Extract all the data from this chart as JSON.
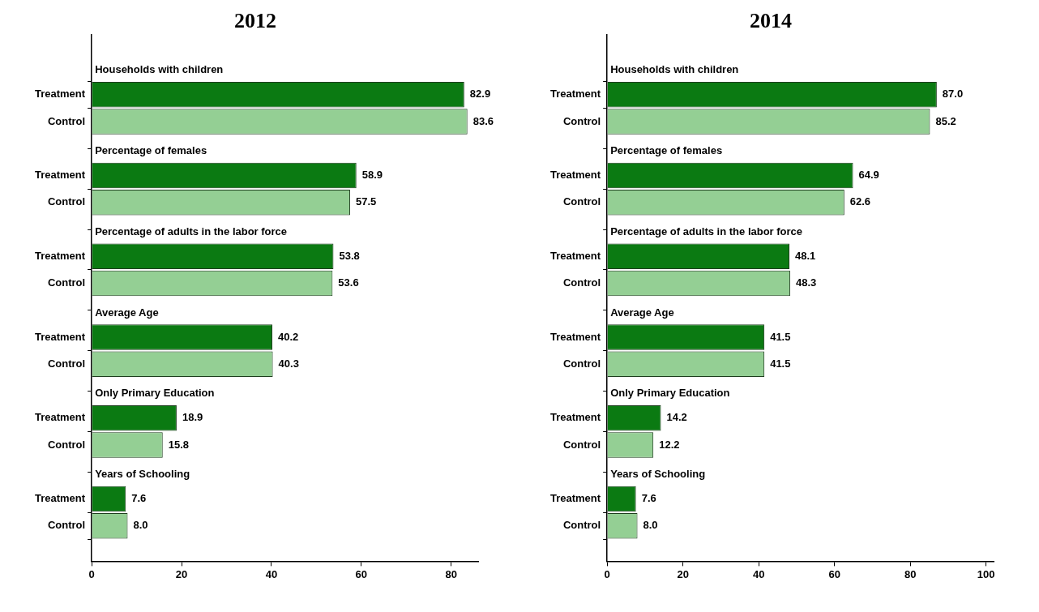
{
  "chart_data": [
    {
      "type": "bar",
      "orientation": "horizontal",
      "title": "2012",
      "categories": [
        "Treatment",
        "Control",
        "Treatment",
        "Control",
        "Treatment",
        "Control",
        "Treatment",
        "Control",
        "Treatment",
        "Control",
        "Treatment",
        "Control"
      ],
      "annotations": [
        "Households with children",
        "Percentage of females",
        "Percentage of adults in the labor force",
        "Average Age",
        "Only Primary Education",
        "Years of Schooling"
      ],
      "values": [
        82.9,
        83.6,
        58.9,
        57.5,
        53.8,
        53.6,
        40.2,
        40.3,
        18.9,
        15.8,
        7.6,
        8.0
      ],
      "value_labels": [
        "82.9",
        "83.6",
        "58.9",
        "57.5",
        "53.8",
        "53.6",
        "40.2",
        "40.3",
        "18.9",
        "15.8",
        "7.6",
        "8.0"
      ],
      "colors": [
        "#0b7a12",
        "#94cf94",
        "#0b7a12",
        "#94cf94",
        "#0b7a12",
        "#94cf94",
        "#0b7a12",
        "#94cf94",
        "#0b7a12",
        "#94cf94",
        "#0b7a12",
        "#94cf94"
      ],
      "xlim": [
        0,
        86
      ],
      "xticks": [
        0,
        20,
        40,
        60,
        80
      ],
      "grid": false
    },
    {
      "type": "bar",
      "orientation": "horizontal",
      "title": "2014",
      "categories": [
        "Treatment",
        "Control",
        "Treatment",
        "Control",
        "Treatment",
        "Control",
        "Treatment",
        "Control",
        "Treatment",
        "Control",
        "Treatment",
        "Control"
      ],
      "annotations": [
        "Households with children",
        "Percentage of females",
        "Percentage of adults in the labor force",
        "Average Age",
        "Only Primary Education",
        "Years of Schooling"
      ],
      "values": [
        87.0,
        85.2,
        64.9,
        62.6,
        48.1,
        48.3,
        41.5,
        41.5,
        14.2,
        12.2,
        7.6,
        8.0
      ],
      "value_labels": [
        "87.0",
        "85.2",
        "64.9",
        "62.6",
        "48.1",
        "48.3",
        "41.5",
        "41.5",
        "14.2",
        "12.2",
        "7.6",
        "8.0"
      ],
      "colors": [
        "#0b7a12",
        "#94cf94",
        "#0b7a12",
        "#94cf94",
        "#0b7a12",
        "#94cf94",
        "#0b7a12",
        "#94cf94",
        "#0b7a12",
        "#94cf94",
        "#0b7a12",
        "#94cf94"
      ],
      "xlim": [
        0,
        102
      ],
      "xticks": [
        0,
        20,
        40,
        60,
        80,
        100
      ],
      "grid": false
    }
  ]
}
